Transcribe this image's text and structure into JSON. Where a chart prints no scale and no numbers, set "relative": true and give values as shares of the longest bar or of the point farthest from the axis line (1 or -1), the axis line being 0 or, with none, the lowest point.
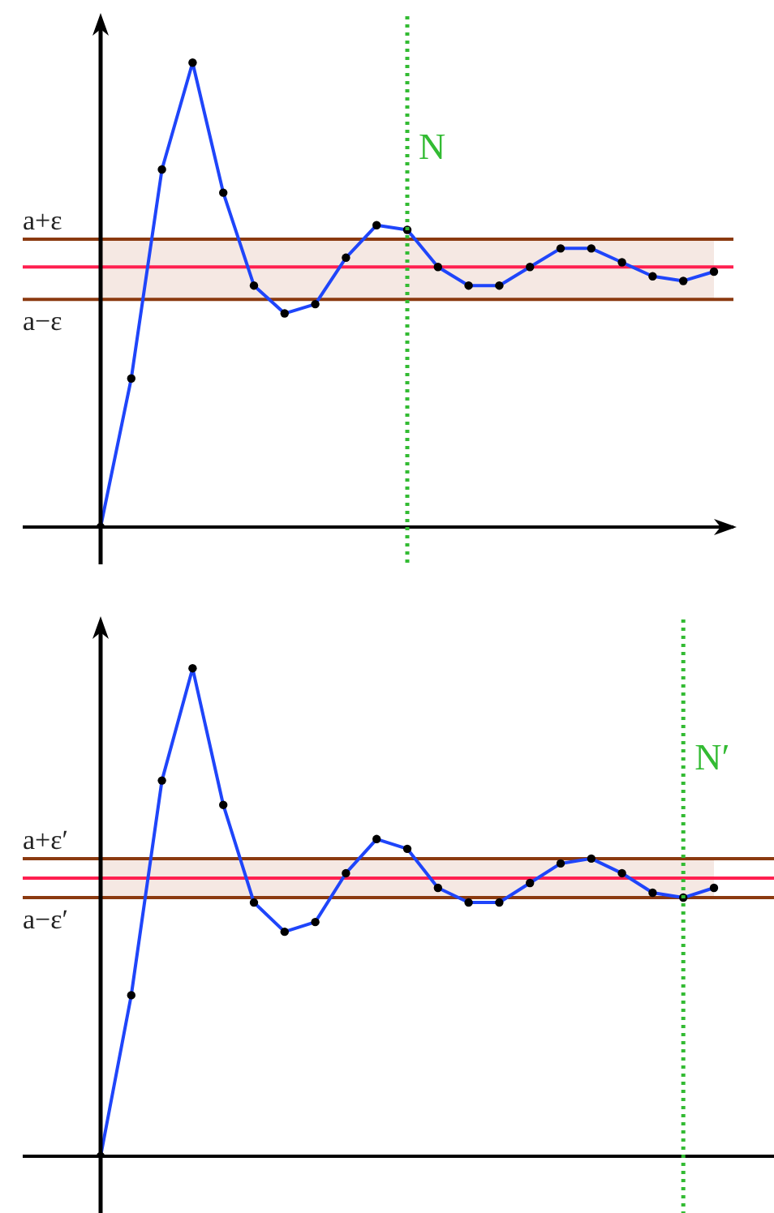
{
  "chart_data": [
    {
      "type": "line",
      "relative": true,
      "categories": [
        null,
        null,
        null,
        null,
        null,
        null,
        null,
        null,
        null,
        null,
        null,
        null,
        null,
        null,
        null,
        null,
        null,
        null,
        null,
        null,
        null
      ],
      "marker": "circle",
      "series": [
        {
          "color": "#1f45fa",
          "values": [
            0,
            0.32,
            0.77,
            1,
            0.72,
            0.52,
            0.46,
            0.48,
            0.58,
            0.65,
            0.64,
            0.56,
            0.52,
            0.52,
            0.56,
            0.6,
            0.6,
            0.57,
            0.54,
            0.53,
            0.55
          ]
        }
      ],
      "bands": [
        {
          "axis": "y",
          "from": 0.49,
          "to": 0.62,
          "color": "#f5e8e3"
        }
      ],
      "ref_lines": [
        {
          "axis": "y",
          "value": 0.62,
          "label": "a+ε",
          "color": "#8b3a10"
        },
        {
          "axis": "y",
          "value": 0.49,
          "label": "a−ε",
          "color": "#8b3a10"
        },
        {
          "axis": "y",
          "value": 0.56,
          "color": "#ff2050"
        }
      ],
      "annotations": [
        "N"
      ]
    },
    {
      "type": "line",
      "relative": true,
      "categories": [
        null,
        null,
        null,
        null,
        null,
        null,
        null,
        null,
        null,
        null,
        null,
        null,
        null,
        null,
        null,
        null,
        null,
        null,
        null,
        null,
        null
      ],
      "marker": "circle",
      "series": [
        {
          "color": "#1f45fa",
          "values": [
            0,
            0.33,
            0.77,
            1,
            0.72,
            0.52,
            0.46,
            0.48,
            0.58,
            0.65,
            0.63,
            0.55,
            0.52,
            0.52,
            0.56,
            0.6,
            0.61,
            0.58,
            0.54,
            0.53,
            0.55
          ]
        }
      ],
      "bands": [
        {
          "axis": "y",
          "from": 0.53,
          "to": 0.61,
          "color": "#f5e8e3"
        }
      ],
      "ref_lines": [
        {
          "axis": "y",
          "value": 0.61,
          "label": "a+ε′",
          "color": "#8b3a10"
        },
        {
          "axis": "y",
          "value": 0.53,
          "label": "a−ε′",
          "color": "#8b3a10"
        },
        {
          "axis": "y",
          "value": 0.57,
          "color": "#ff2050"
        }
      ],
      "annotations": [
        "N′"
      ]
    }
  ]
}
